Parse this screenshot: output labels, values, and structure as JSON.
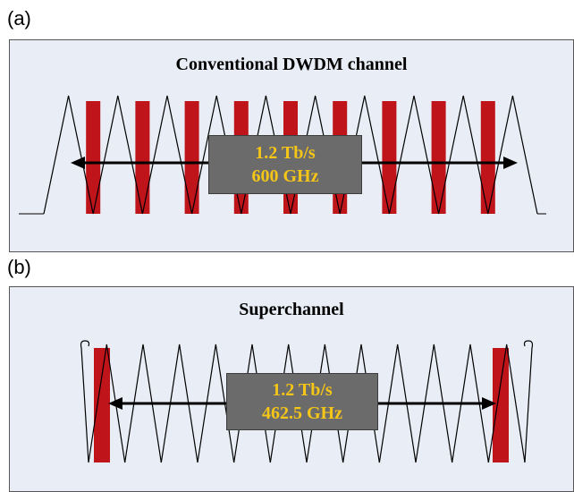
{
  "panel_a": {
    "label": "(a)",
    "title": "Conventional DWDM channel",
    "rate": "1.2 Tb/s",
    "bandwidth": "600 GHz",
    "peak_count": 10,
    "carrier_count": 9
  },
  "panel_b": {
    "label": "(b)",
    "title": "Superchannel",
    "rate": "1.2 Tb/s",
    "bandwidth": "462.5 GHz",
    "peak_count": 12,
    "carrier_count": 2
  },
  "colors": {
    "panel_bg": "#e8edf6",
    "carrier": "#c0141b",
    "box": "#6b6b6b",
    "box_text": "#f5c518",
    "line": "#000000"
  }
}
